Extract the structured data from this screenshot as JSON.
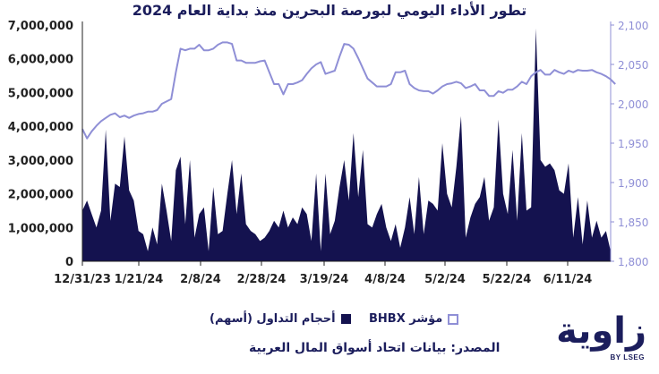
{
  "title": "تطور الأداء اليومي لبورصة البحرين منذ بداية العام 2024",
  "legend": {
    "volume_label": "أحجام التداول (أسهم)",
    "index_label": "مؤشر BHBX"
  },
  "source": "المصدر: بيانات اتحاد أسواق المال العربية",
  "brand": {
    "word": "زاوية",
    "tag": "BY LSEG"
  },
  "colors": {
    "volume": "#14124f",
    "index": "#8f8fd6",
    "axis_right": "#8f8fd6",
    "text": "#1b1d5c"
  },
  "chart_data": {
    "type": "area+line",
    "title": "تطور الأداء اليومي لبورصة البحرين منذ بداية العام 2024",
    "x_tick_labels": [
      "12/31/23",
      "1/21/24",
      "2/8/24",
      "2/28/24",
      "3/19/24",
      "4/8/24",
      "5/2/24",
      "5/22/24",
      "6/11/24"
    ],
    "y_left": {
      "ticks": [
        "0",
        "1,000,000",
        "2,000,000",
        "3,000,000",
        "4,000,000",
        "5,000,000",
        "6,000,000",
        "7,000,000"
      ],
      "min": 0,
      "max": 7000000
    },
    "y_right": {
      "ticks": [
        "1,800",
        "1,850",
        "1,900",
        "1,950",
        "2,000",
        "2,050",
        "2,100"
      ],
      "min": 1800,
      "max": 2100
    },
    "grid": false,
    "series": [
      {
        "name": "أحجام التداول (أسهم)",
        "axis": "left",
        "kind": "area",
        "values": [
          1500000,
          1800000,
          1400000,
          1000000,
          1500000,
          3900000,
          1200000,
          2300000,
          2200000,
          3700000,
          2100000,
          1800000,
          900000,
          800000,
          300000,
          1000000,
          500000,
          2300000,
          1500000,
          600000,
          2700000,
          3100000,
          1100000,
          3000000,
          700000,
          1400000,
          1600000,
          300000,
          2200000,
          800000,
          900000,
          2000000,
          3000000,
          1400000,
          2600000,
          1100000,
          900000,
          800000,
          600000,
          700000,
          900000,
          1200000,
          1000000,
          1500000,
          1000000,
          1300000,
          1100000,
          1600000,
          1400000,
          600000,
          2600000,
          300000,
          2600000,
          800000,
          1200000,
          2200000,
          3000000,
          1800000,
          3800000,
          1900000,
          3300000,
          1100000,
          1000000,
          1400000,
          1700000,
          1000000,
          600000,
          1100000,
          400000,
          1000000,
          1900000,
          800000,
          2500000,
          800000,
          1800000,
          1700000,
          1500000,
          3500000,
          2000000,
          1600000,
          2800000,
          4300000,
          700000,
          1300000,
          1700000,
          1900000,
          2500000,
          1200000,
          1600000,
          4200000,
          2000000,
          1400000,
          3300000,
          1200000,
          3800000,
          1500000,
          1600000,
          6900000,
          3000000,
          2800000,
          2900000,
          2700000,
          2100000,
          2000000,
          2900000,
          700000,
          1900000,
          500000,
          1800000,
          700000,
          1200000,
          700000,
          900000,
          300000
        ]
      },
      {
        "name": "مؤشر BHBX",
        "axis": "right",
        "kind": "line",
        "values": [
          1968,
          1956,
          1965,
          1972,
          1978,
          1982,
          1986,
          1988,
          1983,
          1985,
          1982,
          1985,
          1987,
          1988,
          1990,
          1990,
          1992,
          2000,
          2003,
          2006,
          2040,
          2070,
          2068,
          2070,
          2070,
          2075,
          2068,
          2068,
          2070,
          2075,
          2078,
          2078,
          2076,
          2055,
          2055,
          2052,
          2052,
          2052,
          2054,
          2055,
          2040,
          2025,
          2025,
          2012,
          2025,
          2025,
          2027,
          2030,
          2038,
          2045,
          2050,
          2053,
          2038,
          2040,
          2042,
          2060,
          2076,
          2075,
          2070,
          2058,
          2045,
          2032,
          2027,
          2022,
          2022,
          2022,
          2025,
          2040,
          2040,
          2042,
          2025,
          2020,
          2017,
          2016,
          2016,
          2013,
          2017,
          2022,
          2025,
          2026,
          2028,
          2026,
          2020,
          2022,
          2025,
          2017,
          2017,
          2010,
          2010,
          2016,
          2014,
          2018,
          2018,
          2022,
          2028,
          2025,
          2035,
          2040,
          2043,
          2037,
          2037,
          2043,
          2040,
          2038,
          2042,
          2040,
          2043,
          2042,
          2042,
          2043,
          2040,
          2038,
          2035,
          2031,
          2025
        ]
      }
    ]
  }
}
